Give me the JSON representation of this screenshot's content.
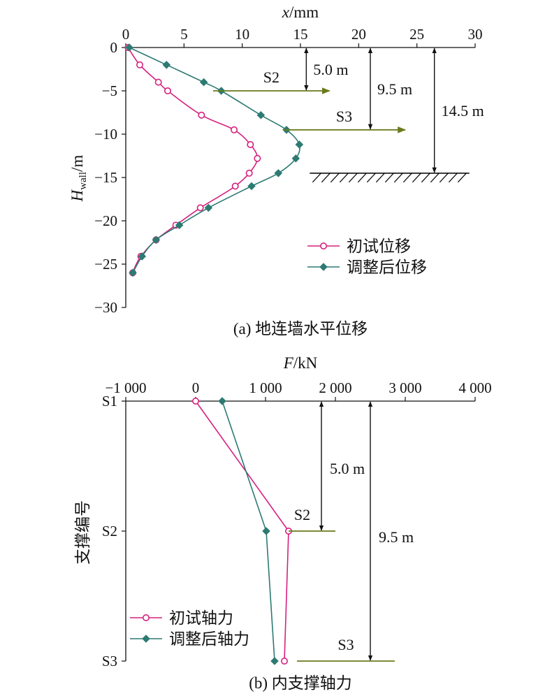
{
  "colors": {
    "initial": "#d6217f",
    "adjusted": "#2c7a72",
    "strut": "#6b7a1c",
    "axis": "#111111"
  },
  "chart_data": [
    {
      "type": "line",
      "caption": "(a) 地连墙水平位移",
      "xlabel": {
        "italic": "x",
        "rest": "/mm"
      },
      "ylabel": {
        "italic": "H",
        "sub": "wall",
        "rest": "/m"
      },
      "xlim": [
        0,
        30
      ],
      "ylim": [
        -30,
        0
      ],
      "x_ticks": [
        0,
        5,
        10,
        15,
        20,
        25,
        30
      ],
      "x_tick_labels": [
        "0",
        "5",
        "10",
        "15",
        "20",
        "25",
        "30"
      ],
      "y_ticks": [
        0,
        -5,
        -10,
        -15,
        -20,
        -25,
        -30
      ],
      "y_tick_labels": [
        "0",
        "−5",
        "−10",
        "−15",
        "−20",
        "−25",
        "−30"
      ],
      "legend_position": "bottom-right",
      "series": [
        {
          "name": "初试位移",
          "marker": "circle-open",
          "color": "#d6217f",
          "points": [
            [
              0.2,
              0
            ],
            [
              1.2,
              -2
            ],
            [
              2.8,
              -4
            ],
            [
              3.6,
              -5
            ],
            [
              6.5,
              -7.8
            ],
            [
              9.3,
              -9.5
            ],
            [
              10.7,
              -11.2
            ],
            [
              11.3,
              -12.8
            ],
            [
              10.6,
              -14.5
            ],
            [
              9.4,
              -16
            ],
            [
              6.4,
              -18.5
            ],
            [
              4.3,
              -20.5
            ],
            [
              2.6,
              -22.2
            ],
            [
              1.3,
              -24.1
            ],
            [
              0.6,
              -26
            ]
          ],
          "curve": [
            [
              0.2,
              0
            ],
            [
              1.2,
              -2
            ],
            [
              2.8,
              -4
            ],
            [
              3.6,
              -5
            ],
            [
              6.5,
              -7.8
            ],
            [
              9.3,
              -9.5
            ],
            [
              10.7,
              -11.2
            ],
            [
              11.3,
              -12.8
            ],
            [
              10.6,
              -14.5
            ],
            [
              9.4,
              -16
            ],
            [
              8.0,
              -17.2
            ],
            [
              6.4,
              -18.5
            ],
            [
              4.3,
              -20.5
            ],
            [
              2.6,
              -22.2
            ],
            [
              1.3,
              -24.1
            ],
            [
              0.8,
              -25.3
            ],
            [
              0.6,
              -26
            ]
          ]
        },
        {
          "name": "调整后位移",
          "marker": "diamond-filled",
          "color": "#2c7a72",
          "points": [
            [
              0.3,
              0
            ],
            [
              3.5,
              -2
            ],
            [
              6.7,
              -4
            ],
            [
              8.2,
              -5
            ],
            [
              11.6,
              -7.8
            ],
            [
              13.8,
              -9.5
            ],
            [
              14.9,
              -11.2
            ],
            [
              14.6,
              -12.8
            ],
            [
              13.1,
              -14.5
            ],
            [
              10.8,
              -16
            ],
            [
              7.1,
              -18.5
            ],
            [
              4.6,
              -20.5
            ],
            [
              2.6,
              -22.2
            ],
            [
              1.4,
              -24.1
            ],
            [
              0.6,
              -26
            ]
          ],
          "curve": [
            [
              0.3,
              0
            ],
            [
              3.5,
              -2
            ],
            [
              6.7,
              -4
            ],
            [
              8.2,
              -5
            ],
            [
              11.6,
              -7.8
            ],
            [
              13.8,
              -9.5
            ],
            [
              14.9,
              -11.2
            ],
            [
              14.6,
              -12.8
            ],
            [
              13.1,
              -14.5
            ],
            [
              10.8,
              -16
            ],
            [
              7.1,
              -18.5
            ],
            [
              4.6,
              -20.5
            ],
            [
              2.6,
              -22.2
            ],
            [
              1.4,
              -24.1
            ],
            [
              0.6,
              -26
            ]
          ]
        }
      ],
      "struts": [
        {
          "label": "S2",
          "depth": -5,
          "x_from": 7.5,
          "x_to": 17.5
        },
        {
          "label": "S3",
          "depth": -9.5,
          "x_from": 13.5,
          "x_to": 24
        }
      ],
      "dimensions": [
        {
          "label": "5.0 m",
          "x": 15.5,
          "from": 0,
          "to": -5
        },
        {
          "label": "9.5 m",
          "x": 21,
          "from": 0,
          "to": -9.5
        },
        {
          "label": "14.5 m",
          "x": 26.5,
          "from": 0,
          "to": -14.5
        }
      ],
      "excavation_bottom": {
        "depth": -14.5,
        "x_from": 15.8,
        "x_to": 29.5
      }
    },
    {
      "type": "line",
      "caption": "(b) 内支撑轴力",
      "xlabel": {
        "italic": "F",
        "rest": "/kN"
      },
      "ylabel": "支撑编号",
      "xlim": [
        -1000,
        4000
      ],
      "x_ticks": [
        -1000,
        0,
        1000,
        2000,
        3000,
        4000
      ],
      "x_tick_labels": [
        "−1 000",
        "0",
        "1 000",
        "2 000",
        "3 000",
        "4 000"
      ],
      "categories": [
        "S1",
        "S2",
        "S3"
      ],
      "legend_position": "bottom-left",
      "series": [
        {
          "name": "初试轴力",
          "marker": "circle-open",
          "color": "#d6217f",
          "values": [
            0,
            1330,
            1270
          ]
        },
        {
          "name": "调整后轴力",
          "marker": "diamond-filled",
          "color": "#2c7a72",
          "values": [
            380,
            1010,
            1130
          ]
        }
      ],
      "strut_levels": [
        {
          "label": "S2",
          "level": 1,
          "x_from": 1330,
          "x_to": 2000
        },
        {
          "label": "S3",
          "level": 2,
          "x_from": 1450,
          "x_to": 2850
        }
      ],
      "dimensions": [
        {
          "label": "5.0 m",
          "x": 1800,
          "from": 0,
          "to": 1
        },
        {
          "label": "9.5 m",
          "x": 2500,
          "from": 0,
          "to": 2
        }
      ]
    }
  ]
}
